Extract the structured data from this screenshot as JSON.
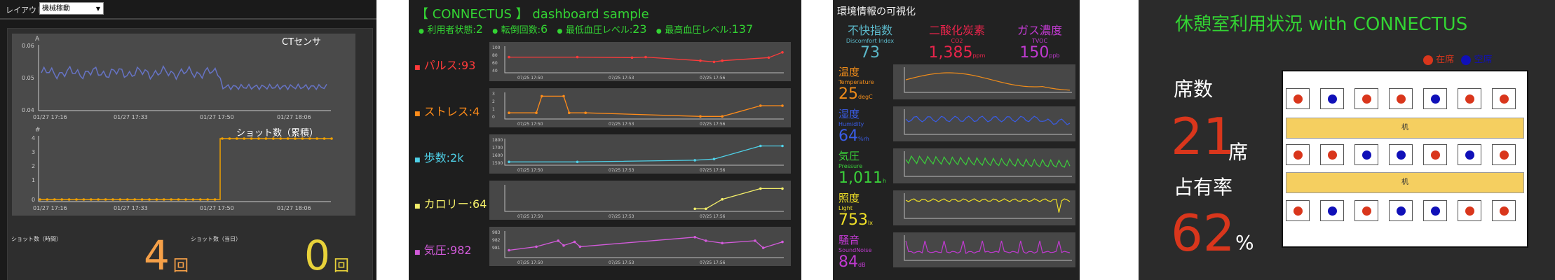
{
  "panel1": {
    "layout_label": "レイアウト",
    "layout_select": "機械稼動",
    "chart1": {
      "ylabel": "A",
      "title": "CTセンサ",
      "yticks": [
        "0.06",
        "0.05",
        "0.04"
      ],
      "xticks": [
        "01/27 17:16",
        "01/27 17:33",
        "01/27 17:50",
        "01/27 18:06"
      ],
      "color": "#6673c4"
    },
    "chart2": {
      "ylabel": "#",
      "title": "ショット数（累積）",
      "yticks": [
        "4",
        "3",
        "2",
        "1",
        "0"
      ],
      "xticks": [
        "01/27 17:16",
        "01/27 17:33",
        "01/27 17:50",
        "01/27 18:06"
      ],
      "color": "#f0a000"
    },
    "stat1_label": "ショット数（時間）",
    "stat1_value": "4",
    "stat1_unit": "回",
    "stat2_label": "ショット数（当日）",
    "stat2_value": "0",
    "stat2_unit": "回"
  },
  "panel2": {
    "title": "【 CONNECTUS 】 dashboard sample",
    "stats": [
      {
        "label": "利用者状態:",
        "value": "2"
      },
      {
        "label": "転倒回数:",
        "value": "6"
      },
      {
        "label": "最低血圧レベル:",
        "value": "23"
      },
      {
        "label": "最高血圧レベル:",
        "value": "137"
      }
    ],
    "rows": [
      {
        "label": "パルス:",
        "value": "93",
        "color": "#ff3b3b",
        "yticks": [
          "100",
          "80",
          "60",
          "40"
        ]
      },
      {
        "label": "ストレス:",
        "value": "4",
        "color": "#ff8c1a",
        "yticks": [
          "3",
          "2",
          "1",
          "0"
        ]
      },
      {
        "label": "歩数:",
        "value": "2k",
        "color": "#4fd1e8",
        "yticks": [
          "1800",
          "1700",
          "1600",
          "1500"
        ]
      },
      {
        "label": "カロリー:",
        "value": "64",
        "color": "#f5f06a",
        "yticks": [
          "",
          "",
          "",
          ""
        ]
      },
      {
        "label": "気圧:",
        "value": "982",
        "color": "#d35bdb",
        "yticks": [
          "983",
          "982",
          "981"
        ]
      }
    ],
    "xticks": [
      "07/25 17:50",
      "07/25 17:53",
      "07/25 17:56"
    ]
  },
  "panel3": {
    "title": "環境情報の可視化",
    "top": [
      {
        "jp": "不快指数",
        "en": "Discomfort Index",
        "value": "73",
        "unit": "",
        "color": "#5bb8c9"
      },
      {
        "jp": "二酸化炭素",
        "en": "CO2",
        "value": "1,385",
        "unit": "ppm",
        "color": "#e8244b"
      },
      {
        "jp": "ガス濃度",
        "en": "TVOC",
        "value": "150",
        "unit": "ppb",
        "color": "#c03ad0"
      }
    ],
    "rows": [
      {
        "jp": "温度",
        "en": "Temperature",
        "value": "25",
        "unit": "degC",
        "color": "#f08c1a"
      },
      {
        "jp": "湿度",
        "en": "Humidity",
        "value": "64",
        "unit": "%rh",
        "color": "#3a5de8"
      },
      {
        "jp": "気圧",
        "en": "Pressure",
        "value": "1,011",
        "unit": "h",
        "color": "#3ad03a"
      },
      {
        "jp": "照度",
        "en": "Light",
        "value": "753",
        "unit": "lx",
        "color": "#f0e028"
      },
      {
        "jp": "騒音",
        "en": "SoundNoise",
        "value": "84",
        "unit": "dB",
        "color": "#c03ad0"
      }
    ]
  },
  "panel4": {
    "title": "休憩室利用状況 with CONNECTUS",
    "legend_in": "在席",
    "legend_empty": "空席",
    "seats_label": "席数",
    "seats_value": "21",
    "seats_unit": "席",
    "rate_label": "占有率",
    "rate_value": "62",
    "rate_unit": "%",
    "desk_label": "机",
    "row1": [
      "r",
      "b",
      "r",
      "r",
      "b",
      "r",
      "r"
    ],
    "row2": [
      "r",
      "r",
      "b",
      "b",
      "r",
      "b",
      "r"
    ],
    "row3": [
      "r",
      "b",
      "r",
      "b",
      "b",
      "r",
      "r"
    ],
    "color_in": "#d9361c",
    "color_empty": "#1010b8"
  }
}
